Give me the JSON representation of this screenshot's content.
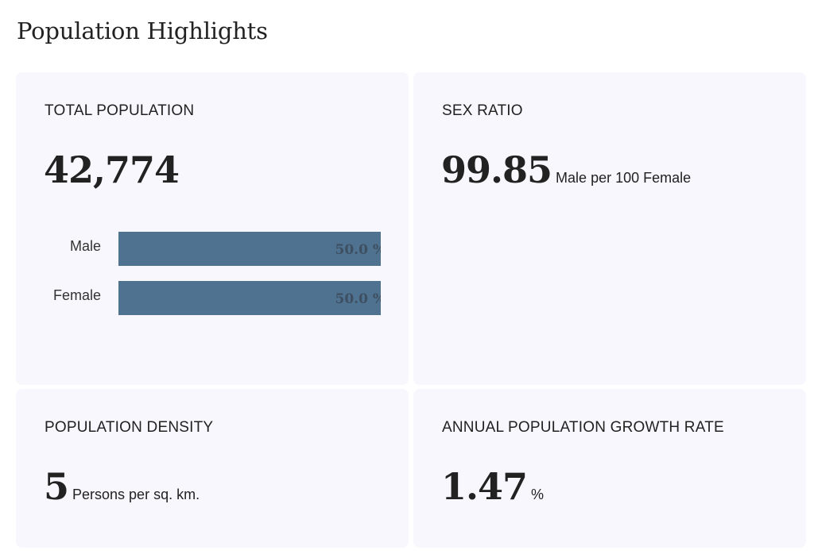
{
  "page": {
    "title": "Population Highlights"
  },
  "total_population": {
    "label": "TOTAL POPULATION",
    "value": "42,774",
    "bars": [
      {
        "label": "Male",
        "percent": 50.0,
        "value_label": "50.0 %"
      },
      {
        "label": "Female",
        "percent": 50.0,
        "value_label": "50.0 %"
      }
    ]
  },
  "sex_ratio": {
    "label": "SEX RATIO",
    "value": "99.85",
    "unit": "Male per 100 Female"
  },
  "density": {
    "label": "POPULATION DENSITY",
    "value": "5",
    "unit": "Persons per sq. km."
  },
  "growth": {
    "label": "ANNUAL POPULATION GROWTH RATE",
    "value": "1.47",
    "unit": "%"
  },
  "colors": {
    "bar": "#4f7291",
    "card": "#f7f7fd"
  }
}
